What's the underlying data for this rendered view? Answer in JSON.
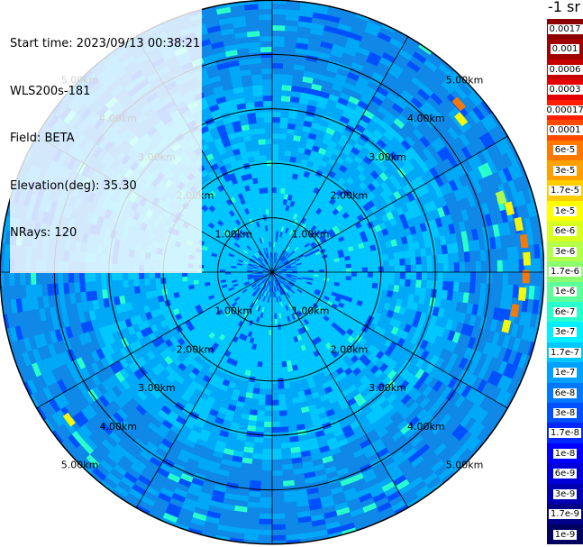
{
  "info": {
    "start_time": "Start time: 2023/09/13 00:38:21",
    "device": "WLS200s-181",
    "field": "Field: BETA",
    "elevation": "Elevation(deg): 35.30",
    "nrays": "NRays: 120"
  },
  "range_labels": [
    "1.00km",
    "2.00km",
    "3.00km",
    "4.00km",
    "5.00km"
  ],
  "range_rings_km": [
    1,
    2,
    3,
    4,
    5
  ],
  "max_range_km": 5,
  "colorbar": {
    "title": "-1 sr",
    "entries": [
      {
        "label": "0.0017",
        "color": "#8b0000"
      },
      {
        "label": "0.001",
        "color": "#a00000"
      },
      {
        "label": "0.0006",
        "color": "#c40000"
      },
      {
        "label": "0.0003",
        "color": "#e50000"
      },
      {
        "label": "0.00017",
        "color": "#ff1e00"
      },
      {
        "label": "0.0001",
        "color": "#ff4a00"
      },
      {
        "label": "6e-5",
        "color": "#ff7800"
      },
      {
        "label": "3e-5",
        "color": "#ffa000"
      },
      {
        "label": "1.7e-5",
        "color": "#ffcc00"
      },
      {
        "label": "1e-5",
        "color": "#ffff00"
      },
      {
        "label": "6e-6",
        "color": "#d8ff1e"
      },
      {
        "label": "3e-6",
        "color": "#b4ff48"
      },
      {
        "label": "1.7e-6",
        "color": "#8cff6e"
      },
      {
        "label": "1e-6",
        "color": "#5cff9a"
      },
      {
        "label": "6e-7",
        "color": "#28ffcc"
      },
      {
        "label": "3e-7",
        "color": "#00f0ff"
      },
      {
        "label": "1.7e-7",
        "color": "#00c8ff"
      },
      {
        "label": "1e-7",
        "color": "#00a0ff"
      },
      {
        "label": "6e-8",
        "color": "#0078ff"
      },
      {
        "label": "3e-8",
        "color": "#0050ff"
      },
      {
        "label": "1.7e-8",
        "color": "#0028ff"
      },
      {
        "label": "1e-8",
        "color": "#0000ff"
      },
      {
        "label": "6e-9",
        "color": "#0000d8"
      },
      {
        "label": "3e-9",
        "color": "#0000b0"
      },
      {
        "label": "1.7e-9",
        "color": "#000088"
      },
      {
        "label": "1e-9",
        "color": "#000060"
      }
    ]
  },
  "field_colors": {
    "inner": "#00c8ff",
    "mid": "#00a8f8",
    "outer": "#0f88e8",
    "speckle_dark": "#0050ff",
    "speckle_light": "#28ffcc",
    "hot_low": "#b4ff48",
    "hot_mid": "#ffff00",
    "hot_high": "#ff7800"
  }
}
